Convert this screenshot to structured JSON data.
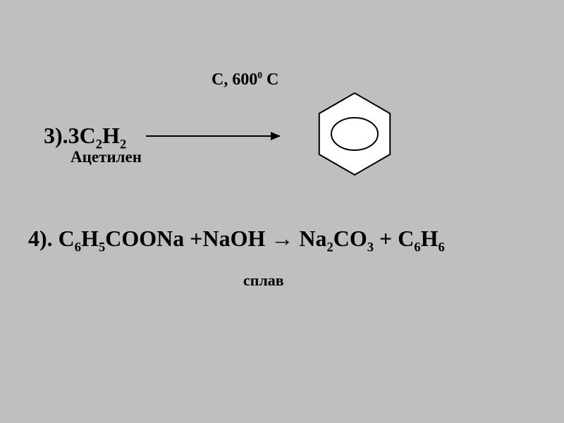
{
  "background_color": "#bfbfbf",
  "text_color": "#000000",
  "line_color": "#000000",
  "shape_fill": "#ffffff",
  "reaction1": {
    "index": "3).",
    "coeff": "3",
    "C": "C",
    "s1": "2",
    "H": "H",
    "s2": "2",
    "condition_prefix": "C, 600",
    "condition_exp": "0",
    "condition_suffix": " C",
    "reagent_label": "Ацетилен",
    "formula_fontsize": 32,
    "condition_fontsize": 24,
    "caption_fontsize": 23,
    "arrow": {
      "length": 190,
      "thickness": 2,
      "head": 10
    },
    "benzene": {
      "size": 120,
      "ellipse_rx": 33,
      "ellipse_ry": 23,
      "stroke": 2
    }
  },
  "reaction2": {
    "index": "4). ",
    "t1": "C",
    "s1": "6",
    "t2": "H",
    "s2": "5",
    "t3": "COONa +NaOH → Na",
    "s3": "2",
    "t4": "CO",
    "s4": "3",
    "t5": " + C",
    "s5": "6",
    "t6": "H",
    "s6": "6",
    "fusion_label": "сплав",
    "formula_fontsize": 32,
    "caption_fontsize": 22
  }
}
